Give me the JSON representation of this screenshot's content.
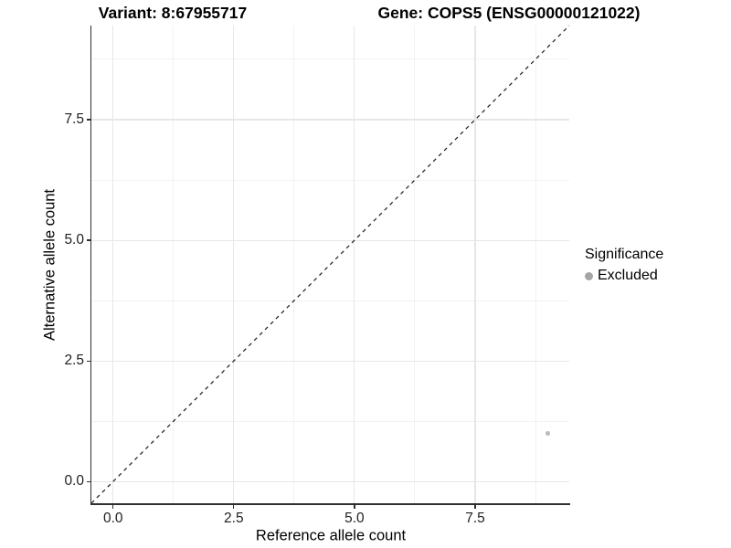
{
  "header": {
    "variant_title": "Variant: 8:67955717",
    "gene_title": "Gene: COPS5 (ENSG00000121022)"
  },
  "axes": {
    "x": {
      "label": "Reference allele count",
      "ticks": [
        {
          "v": 0,
          "label": "0.0"
        },
        {
          "v": 2.5,
          "label": "2.5"
        },
        {
          "v": 5,
          "label": "5.0"
        },
        {
          "v": 7.5,
          "label": "7.5"
        }
      ]
    },
    "y": {
      "label": "Alternative allele count",
      "ticks": [
        {
          "v": 0,
          "label": "0.0"
        },
        {
          "v": 2.5,
          "label": "2.5"
        },
        {
          "v": 5,
          "label": "5.0"
        },
        {
          "v": 7.5,
          "label": "7.5"
        }
      ]
    }
  },
  "legend": {
    "title": "Significance",
    "items": [
      {
        "label": "Excluded",
        "color": "#a5a5a5"
      }
    ]
  },
  "colors": {
    "axis_line": "#2f2f2f",
    "grid_major": "#e7e7e7",
    "grid_minor": "#f2f2f2",
    "reference_line": "#1a1a1a",
    "point": "#bdbdbd"
  },
  "chart_data": {
    "type": "scatter",
    "title": "Variant: 8:67955717   Gene: COPS5 (ENSG00000121022)",
    "xlabel": "Reference allele count",
    "ylabel": "Alternative allele count",
    "xlim": [
      -0.45,
      9.45
    ],
    "ylim": [
      -0.45,
      9.45
    ],
    "xticks": [
      0,
      2.5,
      5,
      7.5
    ],
    "yticks": [
      0,
      2.5,
      5,
      7.5
    ],
    "xgrid_minor": [
      1.25,
      3.75,
      6.25,
      8.75
    ],
    "ygrid_minor": [
      1.25,
      3.75,
      6.25,
      8.75
    ],
    "grid": "major+minor",
    "legend_position": "right",
    "reference_line": {
      "type": "y=x",
      "style": "dashed",
      "color": "#1a1a1a"
    },
    "series": [
      {
        "name": "Excluded",
        "color": "#bdbdbd",
        "point_radius": 2.3,
        "points": [
          {
            "x": 9,
            "y": 1
          }
        ]
      }
    ]
  }
}
